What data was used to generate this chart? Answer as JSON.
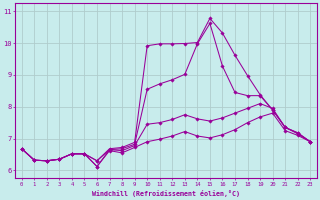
{
  "xlabel": "Windchill (Refroidissement éolien,°C)",
  "background_color": "#c8ecec",
  "line_color": "#990099",
  "grid_color": "#b0cccc",
  "xlim": [
    -0.5,
    23.5
  ],
  "ylim": [
    5.75,
    11.25
  ],
  "xticks": [
    0,
    1,
    2,
    3,
    4,
    5,
    6,
    7,
    8,
    9,
    10,
    11,
    12,
    13,
    14,
    15,
    16,
    17,
    18,
    19,
    20,
    21,
    22,
    23
  ],
  "yticks": [
    6,
    7,
    8,
    9,
    10,
    11
  ],
  "lines": [
    [
      6.68,
      6.32,
      6.3,
      6.35,
      6.52,
      6.52,
      6.12,
      6.62,
      6.55,
      6.72,
      6.9,
      6.98,
      7.08,
      7.22,
      7.08,
      7.02,
      7.12,
      7.28,
      7.5,
      7.68,
      7.8,
      7.25,
      7.1,
      6.9
    ],
    [
      6.68,
      6.32,
      6.3,
      6.35,
      6.52,
      6.52,
      6.3,
      6.65,
      6.62,
      6.78,
      7.45,
      7.5,
      7.6,
      7.75,
      7.62,
      7.55,
      7.65,
      7.8,
      7.95,
      8.1,
      7.95,
      7.35,
      7.15,
      6.9
    ],
    [
      6.68,
      6.32,
      6.3,
      6.35,
      6.52,
      6.52,
      6.12,
      6.65,
      6.68,
      6.82,
      8.55,
      8.72,
      8.85,
      9.02,
      9.98,
      10.62,
      9.28,
      8.45,
      8.35,
      8.35,
      7.9,
      7.35,
      7.18,
      6.9
    ],
    [
      6.68,
      6.32,
      6.3,
      6.35,
      6.52,
      6.52,
      6.3,
      6.68,
      6.72,
      6.88,
      9.92,
      9.98,
      9.98,
      9.99,
      10.02,
      10.78,
      10.32,
      9.62,
      8.98,
      8.38,
      7.9,
      7.35,
      7.18,
      6.9
    ]
  ]
}
